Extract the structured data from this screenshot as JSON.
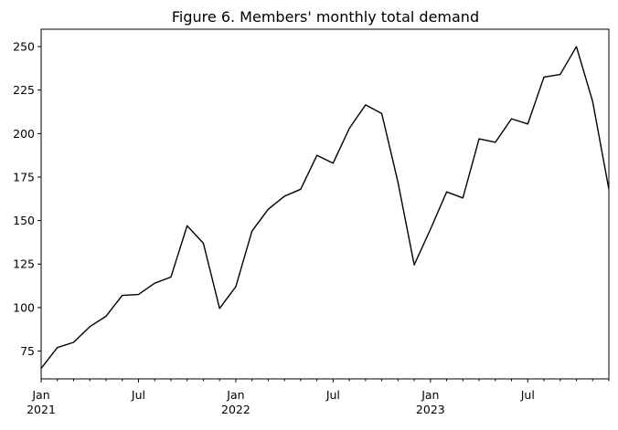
{
  "chart_data": {
    "type": "line",
    "title": "Figure 6. Members' monthly total demand",
    "xlabel": "",
    "ylabel": "",
    "x": [
      "2021-01",
      "2021-02",
      "2021-03",
      "2021-04",
      "2021-05",
      "2021-06",
      "2021-07",
      "2021-08",
      "2021-09",
      "2021-10",
      "2021-11",
      "2021-12",
      "2022-01",
      "2022-02",
      "2022-03",
      "2022-04",
      "2022-05",
      "2022-06",
      "2022-07",
      "2022-08",
      "2022-09",
      "2022-10",
      "2022-11",
      "2022-12",
      "2023-01",
      "2023-02",
      "2023-03",
      "2023-04",
      "2023-05",
      "2023-06",
      "2023-07",
      "2023-08",
      "2023-09",
      "2023-10",
      "2023-11",
      "2023-12"
    ],
    "series": [
      {
        "name": "",
        "color": "#000000",
        "values": [
          65,
          77,
          80,
          89,
          95,
          107,
          107.5,
          114,
          117.5,
          147,
          137,
          99.5,
          112,
          144,
          156.5,
          164,
          168,
          187.5,
          183,
          203,
          216.5,
          211.5,
          172,
          124.5,
          145,
          166.5,
          163,
          197,
          195,
          208.5,
          205.5,
          232.5,
          234,
          250,
          218.5,
          168
        ]
      }
    ],
    "ylim": [
      59,
      260
    ],
    "yticks": [
      75,
      100,
      125,
      150,
      175,
      200,
      225,
      250
    ],
    "xticks": [
      {
        "index": 0,
        "label": "Jan",
        "sublabel": "2021"
      },
      {
        "index": 6,
        "label": "Jul",
        "sublabel": ""
      },
      {
        "index": 12,
        "label": "Jan",
        "sublabel": "2022"
      },
      {
        "index": 18,
        "label": "Jul",
        "sublabel": ""
      },
      {
        "index": 24,
        "label": "Jan",
        "sublabel": "2023"
      },
      {
        "index": 30,
        "label": "Jul",
        "sublabel": ""
      }
    ],
    "grid": false,
    "legend": "none"
  }
}
